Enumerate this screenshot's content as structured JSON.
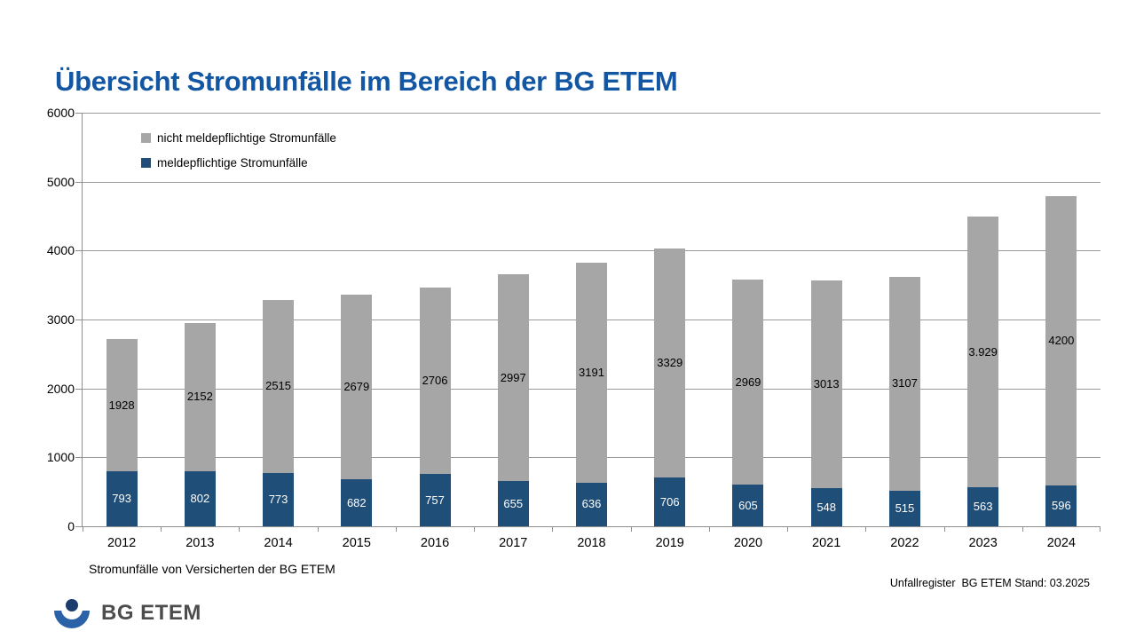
{
  "title": "Übersicht Stromunfälle im Bereich der BG ETEM",
  "title_color": "#1356a3",
  "chart_data": {
    "type": "bar",
    "stacked": true,
    "title": "Übersicht Stromunfälle im Bereich der BG ETEM",
    "categories": [
      "2012",
      "2013",
      "2014",
      "2015",
      "2016",
      "2017",
      "2018",
      "2019",
      "2020",
      "2021",
      "2022",
      "2023",
      "2024"
    ],
    "series": [
      {
        "name": "meldepflichtige Stromunfälle",
        "color": "#1f4e79",
        "label_color": "#ffffff",
        "values": [
          793,
          802,
          773,
          682,
          757,
          655,
          636,
          706,
          605,
          548,
          515,
          563,
          596
        ],
        "value_labels": [
          "793",
          "802",
          "773",
          "682",
          "757",
          "655",
          "636",
          "706",
          "605",
          "548",
          "515",
          "563",
          "596"
        ]
      },
      {
        "name": "nicht meldepflichtige Stromunfälle",
        "color": "#a6a6a6",
        "label_color": "#000000",
        "values": [
          1928,
          2152,
          2515,
          2679,
          2706,
          2997,
          3191,
          3329,
          2969,
          3013,
          3107,
          3929,
          4200
        ],
        "value_labels": [
          "1928",
          "2152",
          "2515",
          "2679",
          "2706",
          "2997",
          "3191",
          "3329",
          "2969",
          "3013",
          "3107",
          "3.929",
          "4200"
        ]
      }
    ],
    "legend": [
      {
        "label": "nicht meldepflichtige Stromunfälle",
        "color": "#a6a6a6"
      },
      {
        "label": "meldepflichtige Stromunfälle",
        "color": "#1f4e79"
      }
    ],
    "legend_position": "top-left-inside",
    "grid": true,
    "xlabel": "",
    "ylabel": "",
    "ylim": [
      0,
      6000
    ],
    "y_ticks": [
      "0",
      "1000",
      "2000",
      "3000",
      "4000",
      "5000",
      "6000"
    ]
  },
  "footnote": "Stromunfälle von Versicherten der BG ETEM",
  "source": "Unfallregister  BG ETEM Stand: 03.2025",
  "logo": {
    "text": "BG ETEM"
  },
  "colors": {
    "axis": "#8e8e8e",
    "gridline": "#9a9a9a",
    "bar_blue": "#1f4e79",
    "bar_gray": "#a6a6a6",
    "logo_bowl": "#2b62a7",
    "logo_head": "#1d3c6e",
    "logo_text": "#4d4d4d"
  }
}
